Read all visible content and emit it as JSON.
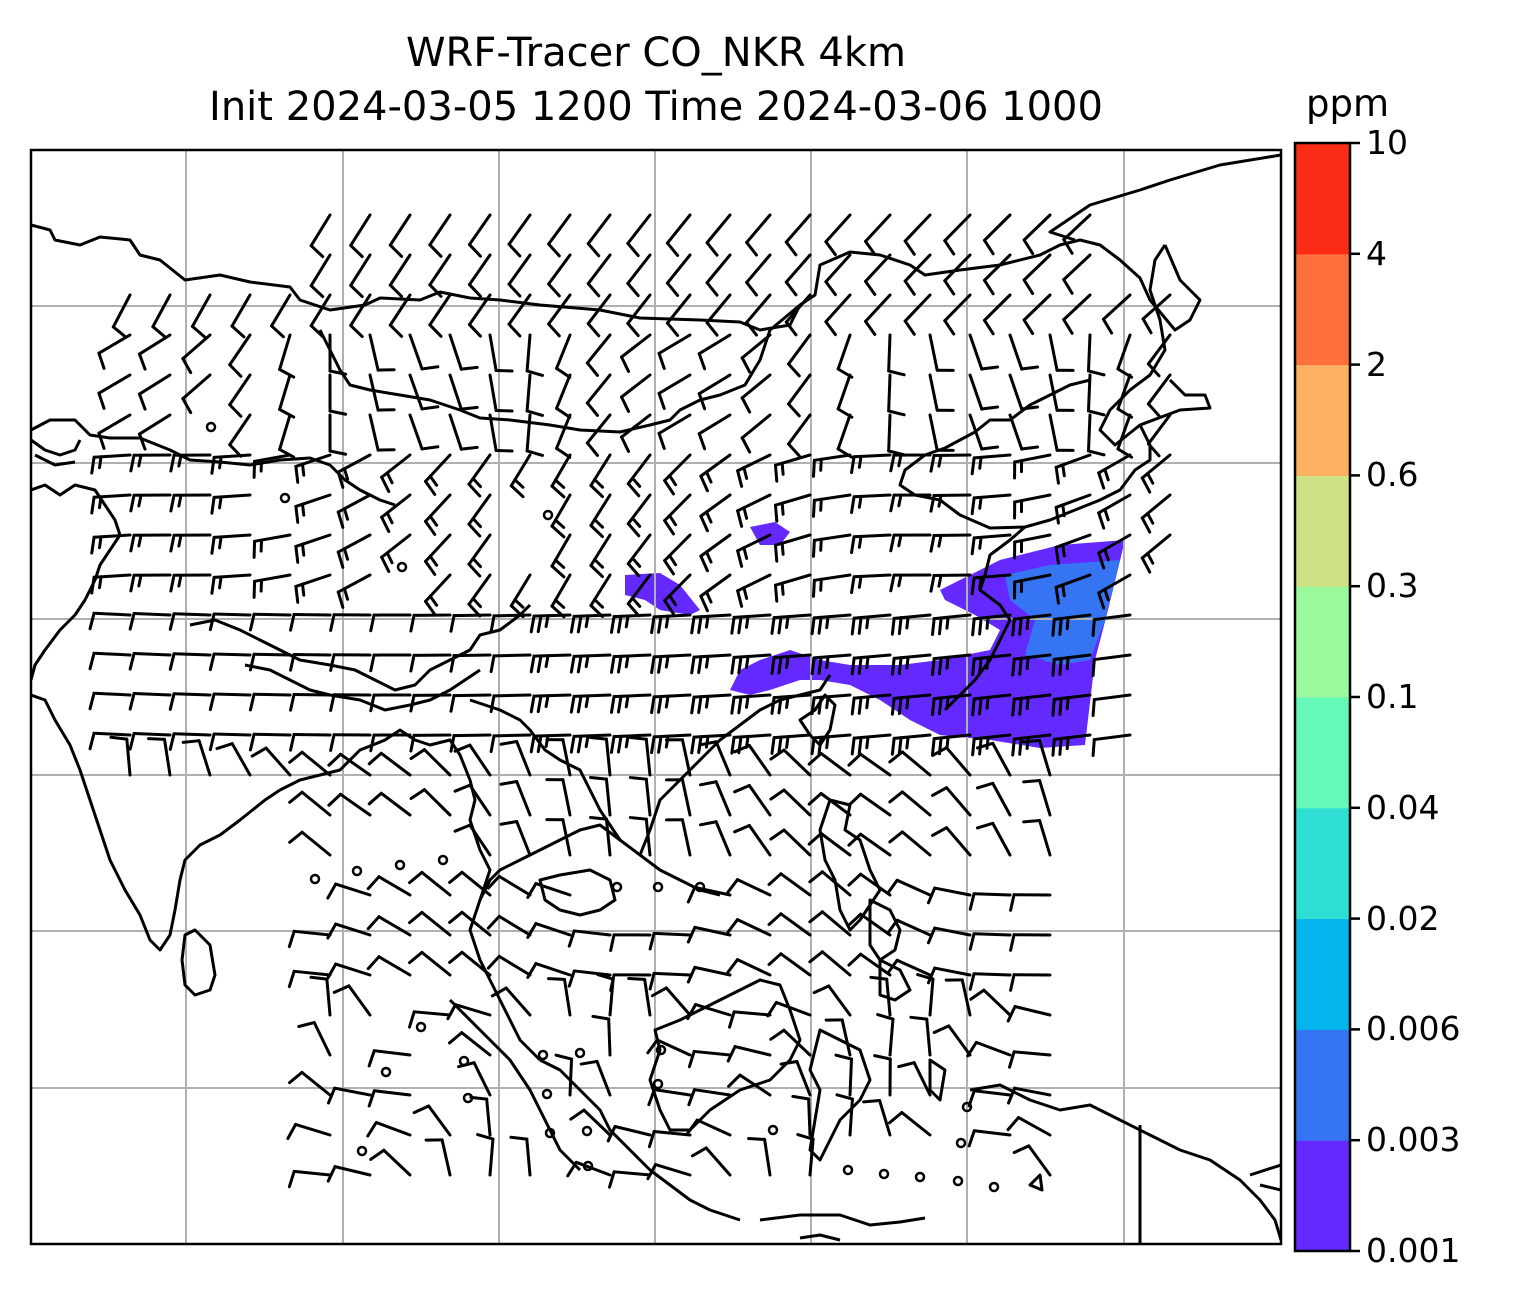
{
  "title": {
    "line1": "WRF-Tracer CO_NKR 4km",
    "line2": "Init 2024-03-05 1200 Time 2024-03-06 1000"
  },
  "colorbar": {
    "unit": "ppm",
    "levels": [
      "0.001",
      "0.003",
      "0.006",
      "0.02",
      "0.04",
      "0.1",
      "0.3",
      "0.6",
      "2",
      "4",
      "10"
    ],
    "colors": [
      "#6429ff",
      "#3575f3",
      "#04b4ec",
      "#2fdfd4",
      "#66f8b9",
      "#9af99c",
      "#cfe185",
      "#fcb061",
      "#fd703e",
      "#fb2d17"
    ]
  },
  "map": {
    "grid_color": "#b0b0b0",
    "coastline_color": "#000000",
    "barb_color": "#000000",
    "plume_colors": [
      "#6429ff",
      "#3575f3"
    ]
  }
}
